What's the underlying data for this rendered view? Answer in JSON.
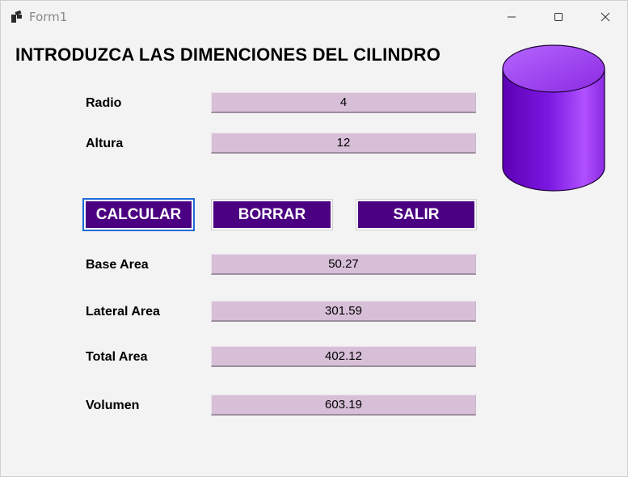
{
  "window": {
    "title": "Form1"
  },
  "form": {
    "heading": "INTRODUZCA LAS DIMENCIONES DEL CILINDRO",
    "inputs": {
      "radio_label": "Radio",
      "radio_value": "4",
      "altura_label": "Altura",
      "altura_value": "12"
    },
    "buttons": {
      "calcular": "CALCULAR",
      "borrar": "BORRAR",
      "salir": "SALIR"
    },
    "results": {
      "base_area_label": "Base Area",
      "base_area_value": "50.27",
      "lateral_area_label": "Lateral Area",
      "lateral_area_value": "301.59",
      "total_area_label": "Total Area",
      "total_area_value": "402.12",
      "volumen_label": "Volumen",
      "volumen_value": "603.19"
    }
  },
  "colors": {
    "field_background": "#d8bfd8",
    "button_background": "#4b0082",
    "button_text": "#ffffff",
    "cylinder": "#8a2be2"
  },
  "icons": {
    "app": "form-app-icon",
    "minimize": "minimize-icon",
    "maximize": "maximize-icon",
    "close": "close-icon",
    "cylinder": "cylinder-picture"
  }
}
